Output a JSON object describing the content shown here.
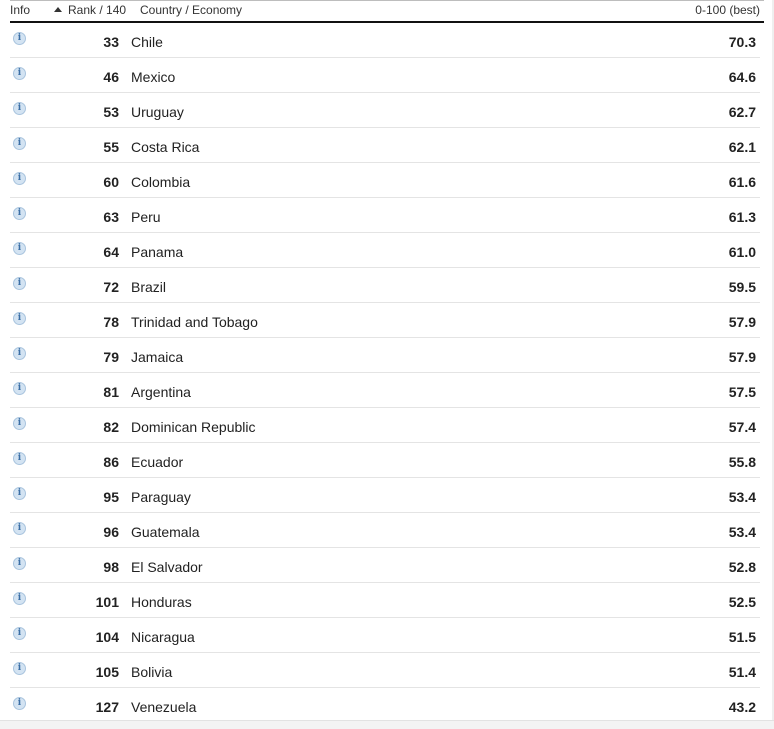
{
  "header": {
    "info_label": "Info",
    "rank_label": "Rank / 140",
    "country_label": "Country / Economy",
    "score_label": "0-100 (best)"
  },
  "info_icon_glyph": "i",
  "rows": [
    {
      "rank": "33",
      "country": "Chile",
      "score": "70.3"
    },
    {
      "rank": "46",
      "country": "Mexico",
      "score": "64.6"
    },
    {
      "rank": "53",
      "country": "Uruguay",
      "score": "62.7"
    },
    {
      "rank": "55",
      "country": "Costa Rica",
      "score": "62.1"
    },
    {
      "rank": "60",
      "country": "Colombia",
      "score": "61.6"
    },
    {
      "rank": "63",
      "country": "Peru",
      "score": "61.3"
    },
    {
      "rank": "64",
      "country": "Panama",
      "score": "61.0"
    },
    {
      "rank": "72",
      "country": "Brazil",
      "score": "59.5"
    },
    {
      "rank": "78",
      "country": "Trinidad and Tobago",
      "score": "57.9"
    },
    {
      "rank": "79",
      "country": "Jamaica",
      "score": "57.9"
    },
    {
      "rank": "81",
      "country": "Argentina",
      "score": "57.5"
    },
    {
      "rank": "82",
      "country": "Dominican Republic",
      "score": "57.4"
    },
    {
      "rank": "86",
      "country": "Ecuador",
      "score": "55.8"
    },
    {
      "rank": "95",
      "country": "Paraguay",
      "score": "53.4"
    },
    {
      "rank": "96",
      "country": "Guatemala",
      "score": "53.4"
    },
    {
      "rank": "98",
      "country": "El Salvador",
      "score": "52.8"
    },
    {
      "rank": "101",
      "country": "Honduras",
      "score": "52.5"
    },
    {
      "rank": "104",
      "country": "Nicaragua",
      "score": "51.5"
    },
    {
      "rank": "105",
      "country": "Bolivia",
      "score": "51.4"
    },
    {
      "rank": "127",
      "country": "Venezuela",
      "score": "43.2"
    }
  ],
  "colors": {
    "info_icon_fill": "#d3e3f2",
    "info_icon_glyph": "#3a6ea5",
    "header_rule": "#111111",
    "row_divider": "#e4e4e4"
  }
}
